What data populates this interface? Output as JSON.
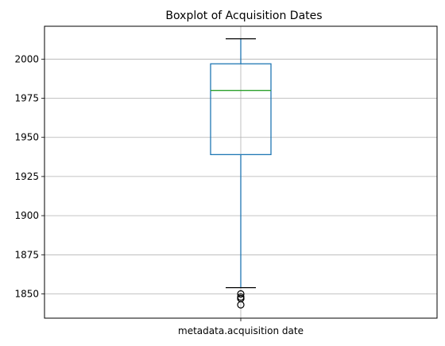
{
  "chart_data": {
    "type": "boxplot",
    "title": "Boxplot of Acquisition Dates",
    "xlabel": "",
    "ylabel": "",
    "categories": [
      "metadata.acquisition date"
    ],
    "ylim": [
      1834.5,
      2021
    ],
    "yticks": [
      1850,
      1875,
      1900,
      1925,
      1950,
      1975,
      2000
    ],
    "grid": true,
    "legend": "none",
    "boxes": [
      {
        "category": "metadata.acquisition date",
        "whisker_low": 1854,
        "q1": 1939,
        "median": 1980,
        "q3": 1997,
        "whisker_high": 2013,
        "outliers": [
          1850,
          1848,
          1847,
          1847,
          1843
        ]
      }
    ],
    "colors": {
      "box": "#1f77b4",
      "median": "#2ca02c",
      "caps": "#000000",
      "outlier": "#000000",
      "grid": "#b0b0b0",
      "axes": "#000000"
    }
  }
}
